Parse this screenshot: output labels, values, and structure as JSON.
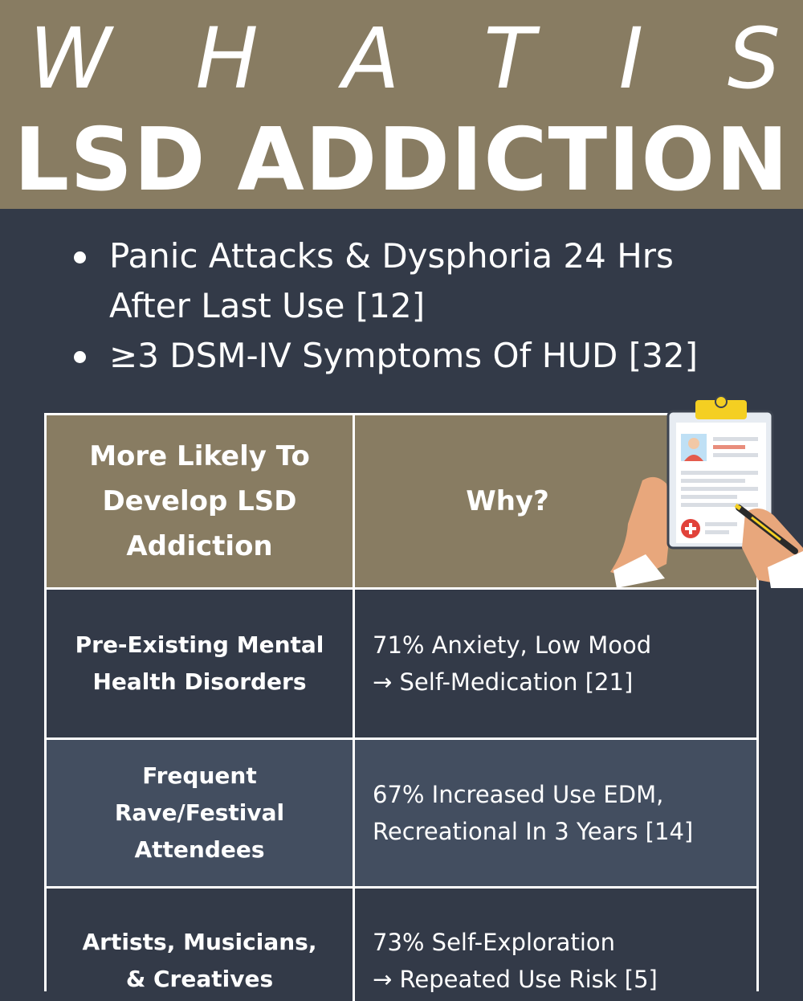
{
  "header": {
    "what_is_letters": [
      "W",
      "H",
      "A",
      "T",
      "I",
      "S"
    ],
    "title": "LSD ADDICTION"
  },
  "bullets": [
    [
      "Panic Attacks & Dysphoria 24 Hrs",
      "After Last Use [12]"
    ],
    [
      "≥3 DSM-IV Symptoms Of HUD [32]"
    ]
  ],
  "table": {
    "headers": [
      [
        "More Likely To",
        "Develop LSD",
        "Addiction"
      ],
      [
        "Why?"
      ]
    ],
    "rows": [
      {
        "group": [
          "Pre-Existing Mental",
          "Health Disorders"
        ],
        "why": [
          "71% Anxiety, Low Mood",
          "→ Self-Medication [21]"
        ]
      },
      {
        "group": [
          "Frequent",
          "Rave/Festival",
          "Attendees"
        ],
        "why": [
          "67% Increased Use EDM,",
          "Recreational In 3 Years [14]"
        ]
      },
      {
        "group": [
          "Artists, Musicians,",
          "& Creatives"
        ],
        "why": [
          "73% Self-Exploration",
          "→ Repeated Use Risk [5]"
        ]
      }
    ]
  },
  "colors": {
    "header_band": "#887c62",
    "background": "#333a48",
    "alt_row": "#434e60"
  },
  "illustration": "clipboard-medical-form-icon"
}
